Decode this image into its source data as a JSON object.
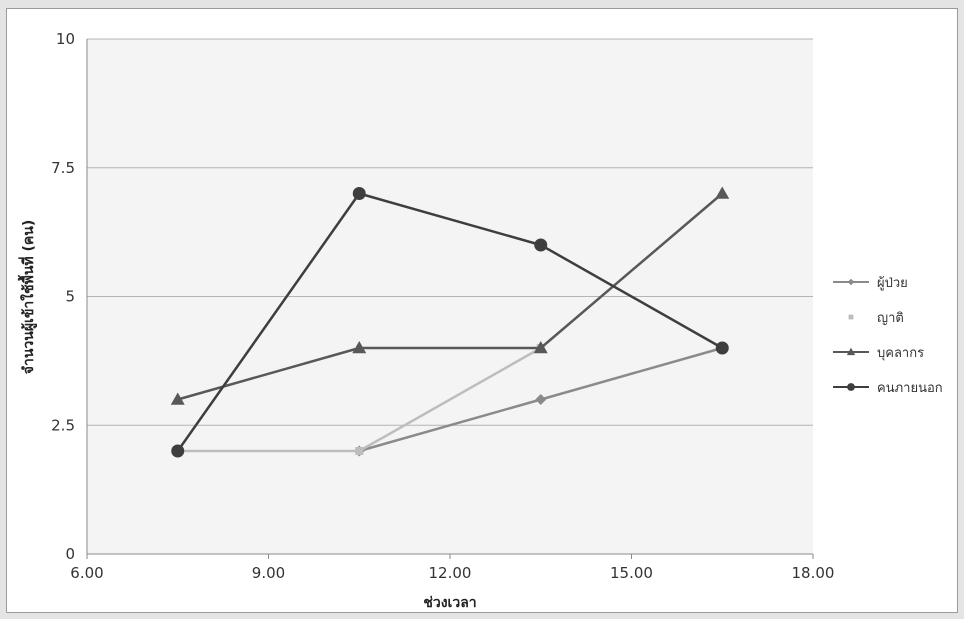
{
  "chart_data": {
    "type": "line",
    "title": "",
    "xlabel": "ช่วงเวลา",
    "ylabel": "จำนวนผู้เข้าใช้พื้นที่ (คน)",
    "xlim": [
      6,
      18
    ],
    "ylim": [
      0,
      10
    ],
    "x_ticks": [
      {
        "value": 6,
        "label": "6.00"
      },
      {
        "value": 9,
        "label": "9.00"
      },
      {
        "value": 12,
        "label": "12.00"
      },
      {
        "value": 15,
        "label": "15.00"
      },
      {
        "value": 18,
        "label": "18.00"
      }
    ],
    "y_ticks": [
      {
        "value": 0,
        "label": "0"
      },
      {
        "value": 2.5,
        "label": "2.5"
      },
      {
        "value": 5,
        "label": "5"
      },
      {
        "value": 7.5,
        "label": "7.5"
      },
      {
        "value": 10,
        "label": "10"
      }
    ],
    "grid": "horizontal",
    "legend_position": "right",
    "x": [
      7.5,
      10.5,
      13.5,
      16.5
    ],
    "series": [
      {
        "name": "ผู้ป่วย",
        "values": [
          null,
          2,
          3,
          4
        ],
        "marker": "diamond",
        "color": "#8a8a8a"
      },
      {
        "name": "ญาติ",
        "values": [
          2,
          2,
          4,
          null
        ],
        "marker": "square",
        "color": "#bdbdbd"
      },
      {
        "name": "บุคลากร",
        "values": [
          3,
          4,
          4,
          7
        ],
        "marker": "triangle",
        "color": "#585858"
      },
      {
        "name": "คนภายนอก",
        "values": [
          2,
          7,
          6,
          4
        ],
        "marker": "circle",
        "color": "#3e3e3e"
      }
    ]
  }
}
